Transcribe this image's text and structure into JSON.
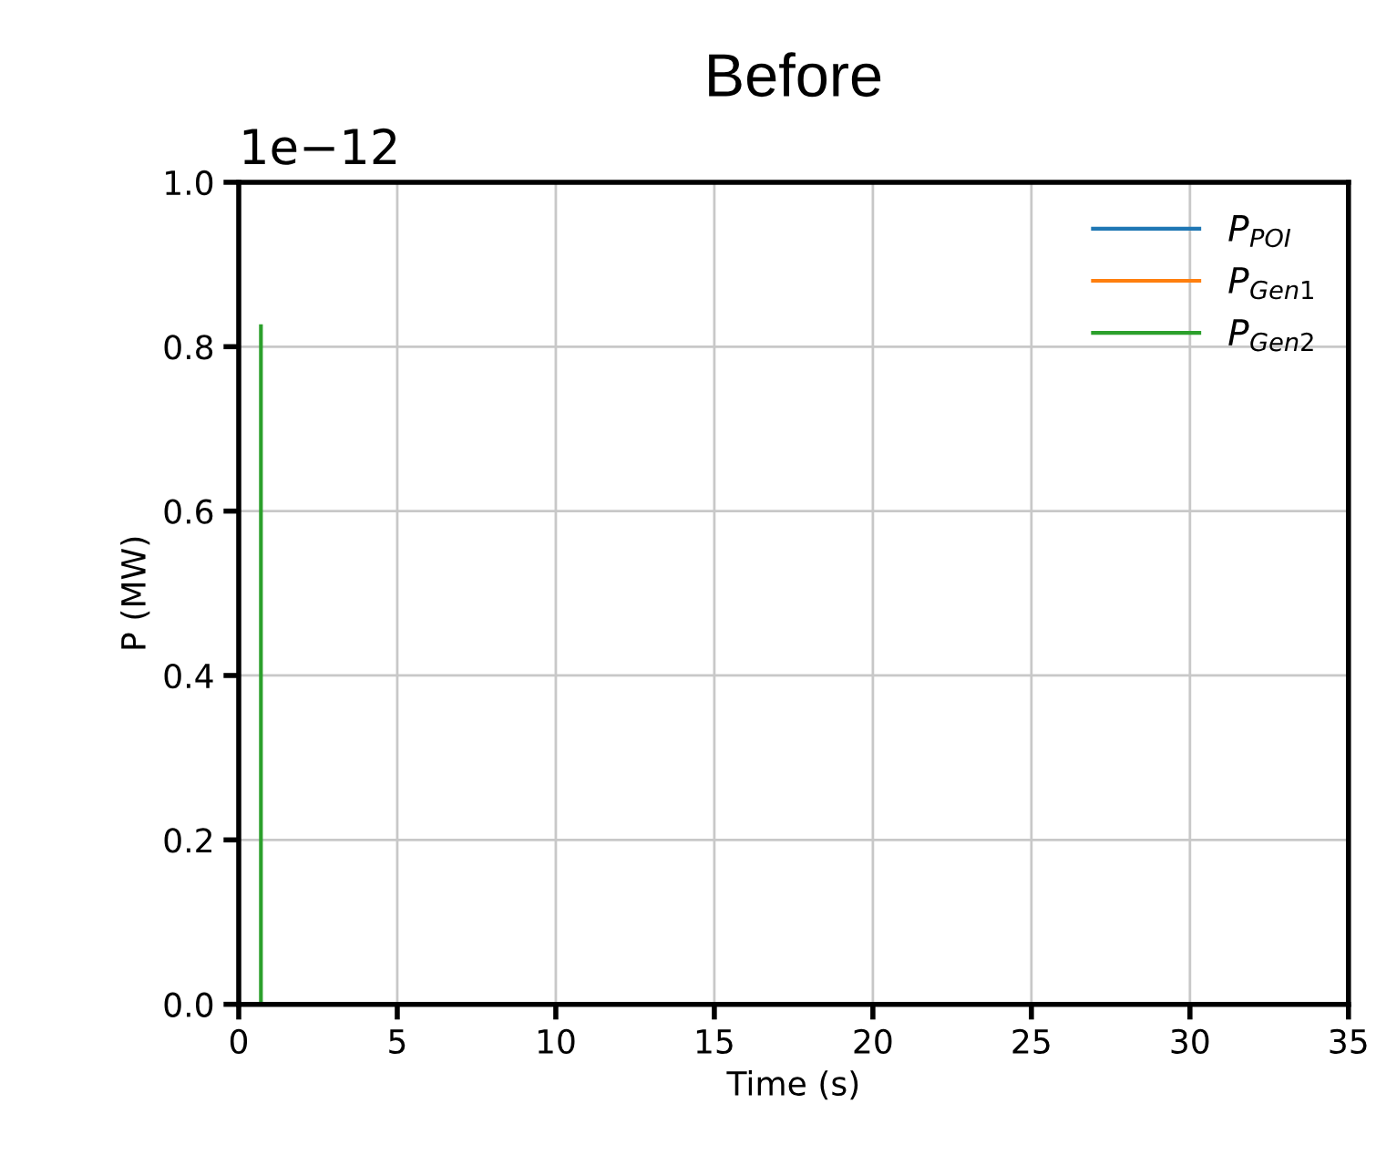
{
  "chart_data": {
    "type": "line",
    "title": "Before",
    "xlabel": "Time (s)",
    "ylabel": "P (MW)",
    "annotations": [
      "1e−12"
    ],
    "xlim": [
      0,
      35
    ],
    "xticks": [
      0,
      5,
      10,
      15,
      20,
      25,
      30,
      35
    ],
    "ylim": [
      0,
      1.0
    ],
    "yticks": [
      {
        "value": 0,
        "label": "0.0"
      },
      {
        "value": 0.2,
        "label": "0.2"
      },
      {
        "value": 0.4,
        "label": "0.4"
      },
      {
        "value": 0.6,
        "label": "0.6"
      },
      {
        "value": 0.8,
        "label": "0.8"
      },
      {
        "value": 1.0,
        "label": "1.0"
      }
    ],
    "grid": true,
    "legend": "top right",
    "series": [
      {
        "name": "P$_{POI}$",
        "color": "#1f77b4"
      },
      {
        "name": "P$_{Gen1}$",
        "color": "#ff7f0e"
      },
      {
        "name": "P$_{Gen2}$",
        "color": "#2ca02c",
        "x": [
          0.7,
          0.7
        ],
        "values": [
          0,
          0.825
        ]
      }
    ]
  }
}
